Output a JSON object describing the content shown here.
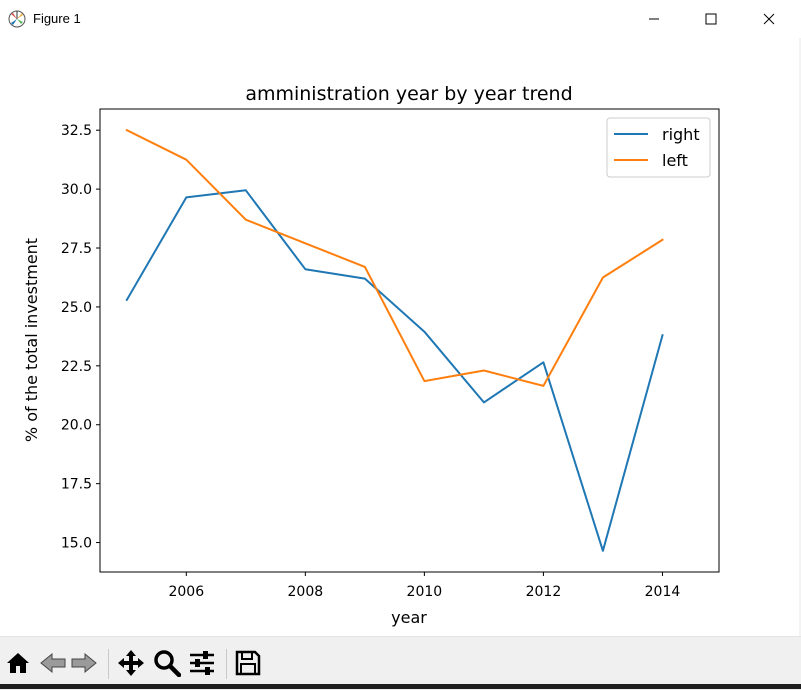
{
  "window": {
    "title": "Figure 1",
    "icons": [
      "matplotlib-icon",
      "minimize-icon",
      "maximize-icon",
      "close-icon"
    ]
  },
  "toolbar": {
    "tools": [
      "home-icon",
      "back-icon",
      "forward-icon",
      "pan-icon",
      "zoom-icon",
      "configure-subplots-icon",
      "save-icon"
    ]
  },
  "chart_data": {
    "type": "line",
    "title": "amministration year by year trend",
    "xlabel": "year",
    "ylabel": "% of the total investment",
    "x": [
      2005,
      2006,
      2007,
      2008,
      2009,
      2010,
      2011,
      2012,
      2013,
      2014
    ],
    "series": [
      {
        "name": "right",
        "color": "#1f77b4",
        "values": [
          25.3,
          29.65,
          29.95,
          26.6,
          26.2,
          23.95,
          20.95,
          22.65,
          14.65,
          23.8
        ]
      },
      {
        "name": "left",
        "color": "#ff7f0e",
        "values": [
          32.5,
          31.25,
          28.7,
          27.7,
          26.7,
          21.85,
          22.3,
          21.65,
          26.25,
          27.85
        ]
      }
    ],
    "xlim": [
      2004.55,
      2014.95
    ],
    "ylim": [
      13.75,
      33.4
    ],
    "xticks": [
      2006,
      2008,
      2010,
      2012,
      2014
    ],
    "yticks": [
      15.0,
      17.5,
      20.0,
      22.5,
      25.0,
      27.5,
      30.0,
      32.5
    ],
    "grid": false,
    "legend_position": "top-right"
  }
}
